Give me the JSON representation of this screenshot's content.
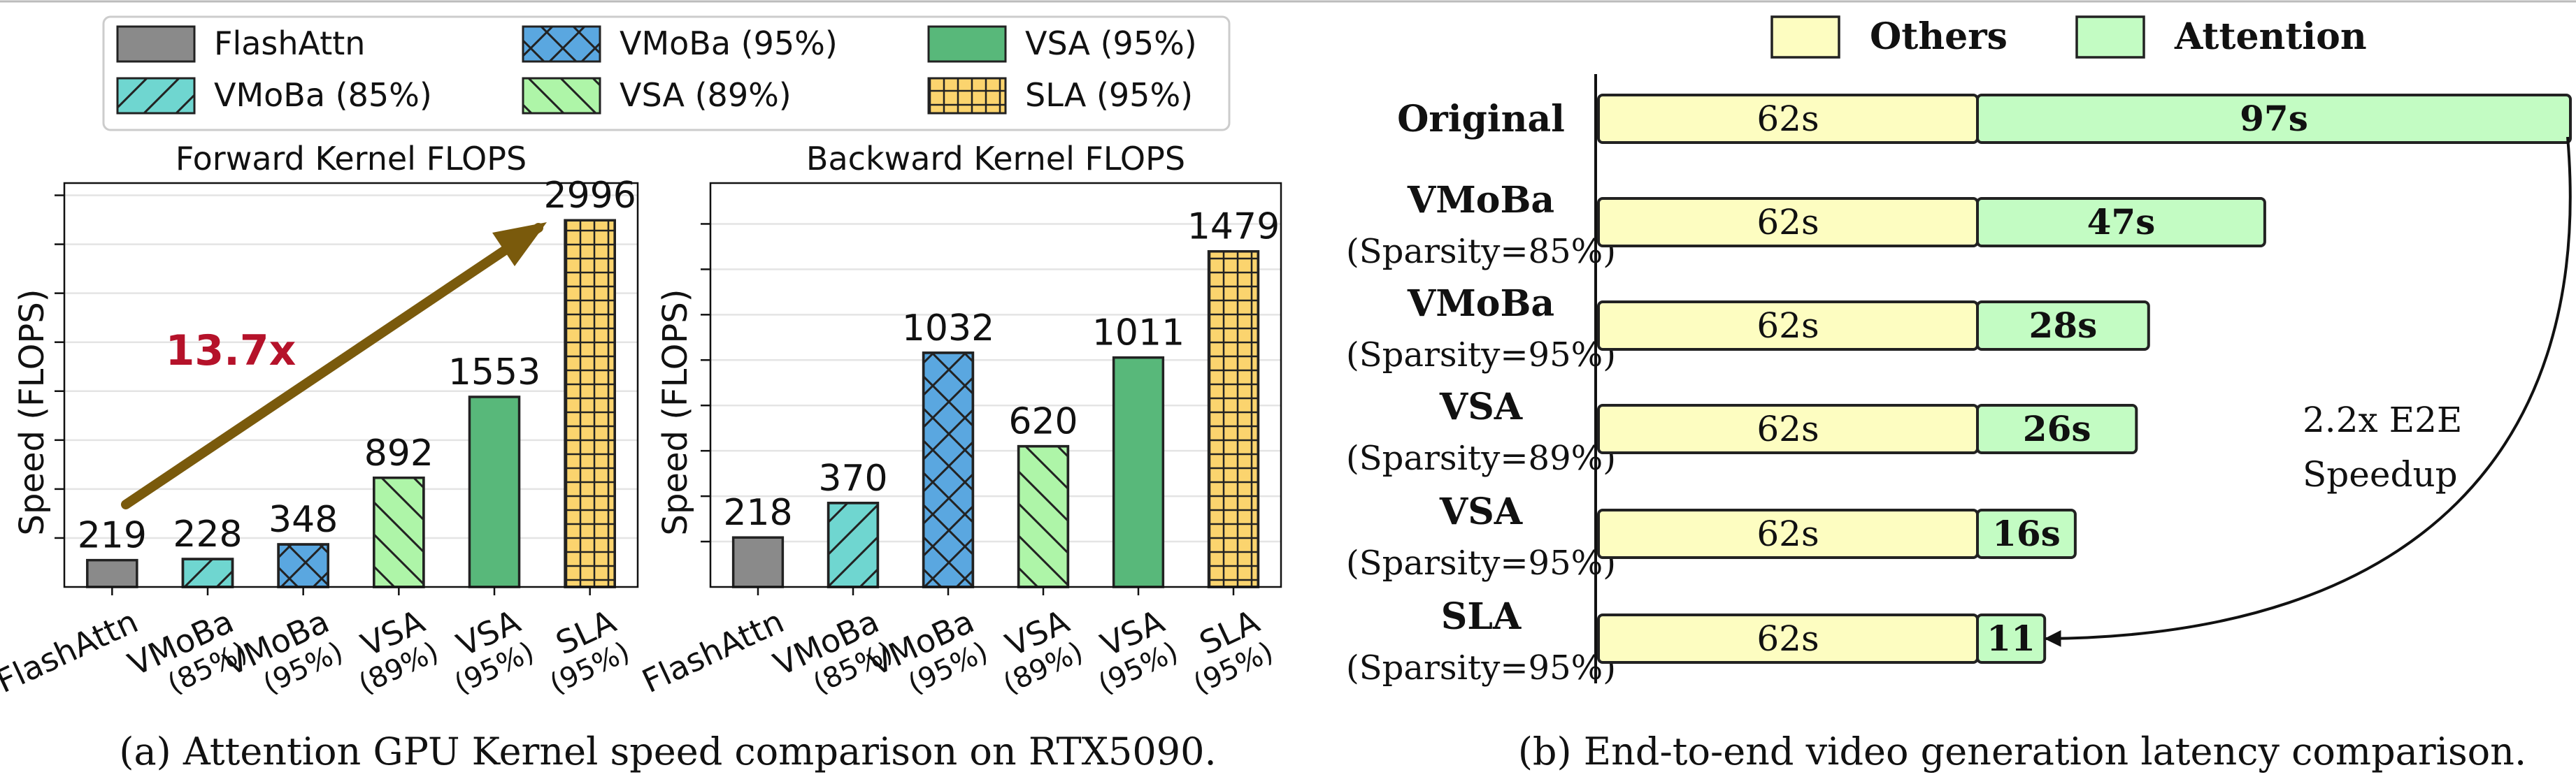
{
  "colors": {
    "FlashAttn": "#8a8a8a",
    "VMoBa85": "#6fd6d0",
    "VMoBa95": "#5aa7e0",
    "VSA89": "#aef5a8",
    "VSA95": "#58b87a",
    "SLA95": "#fbd46e",
    "arrow": "#7a5a0c",
    "speedup_text": "#b5122a",
    "others": "#fdfdc1",
    "attention": "#c3fcc3"
  },
  "legend": {
    "entries": [
      {
        "key": "FlashAttn",
        "label": "FlashAttn",
        "hatch": "none"
      },
      {
        "key": "VMoBa95",
        "label": "VMoBa (95%)",
        "hatch": "cross"
      },
      {
        "key": "VSA95",
        "label": "VSA (95%)",
        "hatch": "none"
      },
      {
        "key": "VMoBa85",
        "label": "VMoBa (85%)",
        "hatch": "slash"
      },
      {
        "key": "VSA89",
        "label": "VSA (89%)",
        "hatch": "backslash"
      },
      {
        "key": "SLA95",
        "label": "SLA (95%)",
        "hatch": "grid"
      }
    ]
  },
  "chart_data": [
    {
      "type": "bar",
      "title": "Forward Kernel FLOPS",
      "ylabel": "Speed (FLOPS)",
      "xlabel": "",
      "ylim": [
        0,
        3300
      ],
      "grid": true,
      "categories": [
        "FlashAttn",
        "VMoBa\n(85%)",
        "VMoBa\n(95%)",
        "VSA\n(89%)",
        "VSA\n(95%)",
        "SLA\n(95%)"
      ],
      "keys": [
        "FlashAttn",
        "VMoBa85",
        "VMoBa95",
        "VSA89",
        "VSA95",
        "SLA95"
      ],
      "values": [
        219,
        228,
        348,
        892,
        1553,
        2996
      ],
      "value_labels": [
        "219",
        "228",
        "348",
        "892",
        "1553",
        "2996"
      ],
      "annotation": "13.7x"
    },
    {
      "type": "bar",
      "title": "Backward Kernel FLOPS",
      "ylabel": "Speed (FLOPS)",
      "xlabel": "",
      "ylim": [
        0,
        1780
      ],
      "grid": true,
      "categories": [
        "FlashAttn",
        "VMoBa\n(85%)",
        "VMoBa\n(95%)",
        "VSA\n(89%)",
        "VSA\n(95%)",
        "SLA\n(95%)"
      ],
      "keys": [
        "FlashAttn",
        "VMoBa85",
        "VMoBa95",
        "VSA89",
        "VSA95",
        "SLA95"
      ],
      "values": [
        218,
        370,
        1032,
        620,
        1011,
        1479
      ],
      "value_labels": [
        "218",
        "370",
        "1032",
        "620",
        "1011",
        "1479"
      ]
    },
    {
      "type": "bar",
      "orientation": "horizontal",
      "stacked": true,
      "legend": [
        "Others",
        "Attention"
      ],
      "categories": [
        {
          "name": "Original",
          "sub": ""
        },
        {
          "name": "VMoBa",
          "sub": "(Sparsity=85%)"
        },
        {
          "name": "VMoBa",
          "sub": "(Sparsity=95%)"
        },
        {
          "name": "VSA",
          "sub": "(Sparsity=89%)"
        },
        {
          "name": "VSA",
          "sub": "(Sparsity=95%)"
        },
        {
          "name": "SLA",
          "sub": "(Sparsity=95%)"
        }
      ],
      "series": [
        {
          "name": "Others",
          "values": [
            62,
            62,
            62,
            62,
            62,
            62
          ],
          "labels": [
            "62s",
            "62s",
            "62s",
            "62s",
            "62s",
            "62s"
          ]
        },
        {
          "name": "Attention",
          "values": [
            97,
            47,
            28,
            26,
            16,
            11
          ],
          "labels": [
            "97s",
            "47s",
            "28s",
            "26s",
            "16s",
            "11"
          ]
        }
      ],
      "xlim": [
        0,
        159
      ],
      "annotation": [
        "2.2x E2E",
        "Speedup"
      ]
    }
  ],
  "captions": {
    "a": "(a) Attention GPU Kernel speed comparison on RTX5090.",
    "b": "(b) End-to-end video generation latency comparison."
  }
}
